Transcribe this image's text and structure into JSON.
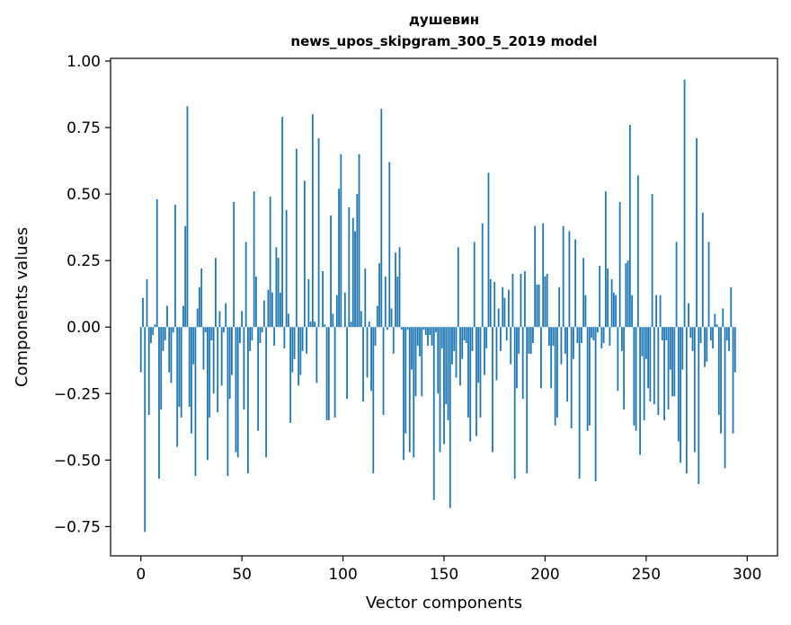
{
  "chart_data": {
    "type": "bar",
    "title": "душевин",
    "subtitle": "news_upos_skipgram_300_5_2019 model",
    "xlabel": "Vector components",
    "ylabel": "Components values",
    "xlim": [
      -15,
      315
    ],
    "ylim": [
      -0.86,
      1.01
    ],
    "xticks": [
      0,
      50,
      100,
      150,
      200,
      250,
      300
    ],
    "xtick_labels": [
      "0",
      "50",
      "100",
      "150",
      "200",
      "250",
      "300"
    ],
    "yticks": [
      1.0,
      0.75,
      0.5,
      0.25,
      0.0,
      -0.25,
      -0.5,
      -0.75
    ],
    "ytick_labels": [
      "1.00",
      "0.75",
      "0.50",
      "0.25",
      "0.00",
      "−0.25",
      "−0.50",
      "−0.75"
    ],
    "bar_color": "#1f77b4",
    "grid": false,
    "values": [
      -0.17,
      0.11,
      -0.77,
      0.18,
      -0.33,
      -0.06,
      -0.03,
      0.01,
      0.48,
      -0.57,
      -0.31,
      -0.09,
      -0.05,
      0.08,
      -0.17,
      -0.21,
      -0.02,
      0.46,
      -0.45,
      -0.3,
      -0.34,
      0.08,
      0.38,
      0.83,
      -0.3,
      -0.4,
      -0.14,
      -0.56,
      0.07,
      0.15,
      0.22,
      -0.16,
      -0.02,
      -0.5,
      -0.34,
      -0.05,
      -0.25,
      0.26,
      -0.32,
      0.06,
      -0.22,
      -0.02,
      0.09,
      -0.56,
      -0.27,
      -0.18,
      0.47,
      -0.47,
      -0.49,
      -0.06,
      0.06,
      -0.31,
      0.32,
      -0.55,
      -0.09,
      -0.05,
      0.51,
      0.19,
      -0.39,
      -0.06,
      -0.02,
      0.1,
      -0.49,
      0.14,
      0.49,
      0.13,
      -0.07,
      0.3,
      0.26,
      0.13,
      0.79,
      -0.08,
      0.44,
      0.05,
      -0.36,
      -0.17,
      -0.12,
      0.67,
      -0.22,
      -0.18,
      -0.09,
      0.55,
      -0.1,
      0.18,
      0.02,
      0.8,
      0.02,
      -0.21,
      0.71,
      0.0,
      0.21,
      0.01,
      -0.35,
      -0.35,
      0.42,
      0.05,
      -0.34,
      0.12,
      0.52,
      0.65,
      0.0,
      0.13,
      -0.27,
      0.45,
      0.02,
      0.41,
      0.36,
      0.5,
      0.65,
      0.06,
      -0.28,
      0.22,
      -0.19,
      0.02,
      -0.24,
      -0.55,
      -0.07,
      0.08,
      0.24,
      0.82,
      -0.33,
      0.19,
      -0.01,
      0.62,
      0.07,
      -0.1,
      0.28,
      0.19,
      0.3,
      -0.01,
      -0.5,
      -0.4,
      -0.01,
      -0.47,
      -0.16,
      -0.49,
      -0.26,
      -0.07,
      -0.11,
      -0.26,
      -0.01,
      -0.03,
      -0.07,
      -0.03,
      -0.07,
      -0.65,
      -0.02,
      -0.25,
      -0.47,
      -0.08,
      -0.44,
      -0.29,
      -0.35,
      -0.68,
      -0.14,
      -0.09,
      -0.19,
      0.3,
      -0.22,
      -0.12,
      -0.05,
      -0.06,
      -0.34,
      -0.43,
      -0.09,
      0.32,
      -0.41,
      -0.21,
      -0.34,
      0.39,
      -0.18,
      -0.08,
      0.58,
      0.18,
      -0.47,
      0.17,
      -0.2,
      0.07,
      -0.09,
      0.15,
      0.11,
      -0.05,
      0.14,
      -0.14,
      0.2,
      -0.57,
      -0.23,
      -0.1,
      0.2,
      -0.27,
      0.21,
      -0.55,
      -0.1,
      -0.1,
      -0.06,
      0.38,
      0.16,
      0.16,
      -0.23,
      0.39,
      0.19,
      0.2,
      -0.07,
      -0.23,
      -0.07,
      -0.37,
      -0.34,
      0.15,
      -0.14,
      0.38,
      -0.1,
      -0.28,
      0.36,
      -0.38,
      -0.12,
      0.33,
      -0.06,
      -0.57,
      -0.06,
      0.26,
      0.12,
      -0.39,
      -0.37,
      -0.04,
      -0.05,
      -0.58,
      -0.02,
      0.23,
      -0.08,
      -0.06,
      0.51,
      0.22,
      -0.07,
      0.18,
      0.13,
      0.12,
      -0.24,
      0.47,
      -0.09,
      -0.31,
      0.24,
      0.25,
      0.76,
      0.12,
      -0.37,
      -0.39,
      0.57,
      -0.48,
      -0.11,
      -0.35,
      -0.12,
      -0.23,
      -0.28,
      0.5,
      -0.29,
      0.12,
      -0.33,
      0.12,
      -0.05,
      -0.35,
      -0.05,
      -0.31,
      -0.16,
      -0.26,
      -0.26,
      0.32,
      -0.43,
      -0.51,
      -0.16,
      0.93,
      -0.55,
      0.09,
      -0.04,
      -0.09,
      -0.47,
      0.71,
      -0.59,
      -0.06,
      0.43,
      -0.15,
      -0.13,
      0.32,
      -0.05,
      -0.08,
      0.05,
      0.01,
      -0.33,
      -0.4,
      0.07,
      -0.53,
      -0.05,
      -0.09,
      0.15,
      -0.4,
      -0.17
    ]
  }
}
